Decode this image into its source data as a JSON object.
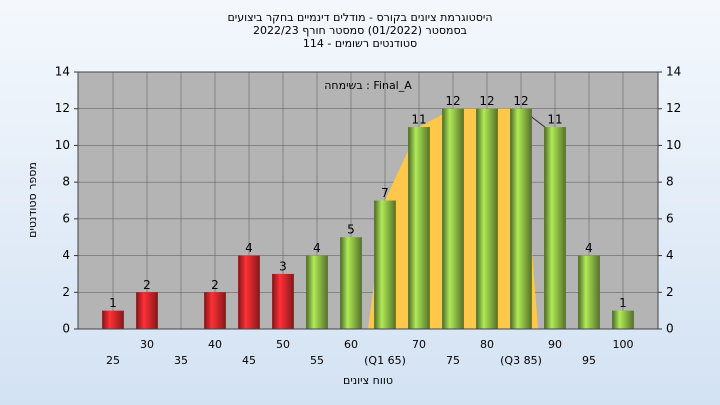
{
  "chart_data": {
    "type": "bar",
    "title": [
      "היסטוגרמת ציונים בקורס - מודלים דינמיים בחקר ביצועים",
      "בסמסטר (01/2022)  סמסטר חורף 2022/23",
      "סטודנטים רשומים - 114"
    ],
    "annotation": "בשימחה : Final_A",
    "ylabel": "מספר סטודנטים",
    "xlabel": "טווח ציונים",
    "categories": [
      "25",
      "30",
      "35",
      "40",
      "45",
      "50",
      "55",
      "60",
      "(Q1 65)",
      "70",
      "75",
      "80",
      "(Q3 85)",
      "90",
      "95",
      "100"
    ],
    "values": [
      1,
      2,
      null,
      2,
      4,
      3,
      4,
      5,
      7,
      11,
      12,
      12,
      12,
      11,
      4,
      1
    ],
    "colors": [
      "#e0262b",
      "#e0262b",
      "#e0262b",
      "#e0262b",
      "#e0262b",
      "#e0262b",
      "#8cbb45",
      "#8cbb45",
      "#8cbb45",
      "#8cbb45",
      "#8cbb45",
      "#8cbb45",
      "#8cbb45",
      "#8cbb45",
      "#8cbb45",
      "#8cbb45"
    ],
    "band_color": "#ffc84a",
    "ylim": [
      0,
      14
    ],
    "yticks": [
      0,
      2,
      4,
      6,
      8,
      10,
      12,
      14
    ],
    "y2lim": [
      0,
      14
    ],
    "y2ticks": [
      0,
      2,
      4,
      6,
      8,
      10,
      12,
      14
    ],
    "grid": true
  }
}
